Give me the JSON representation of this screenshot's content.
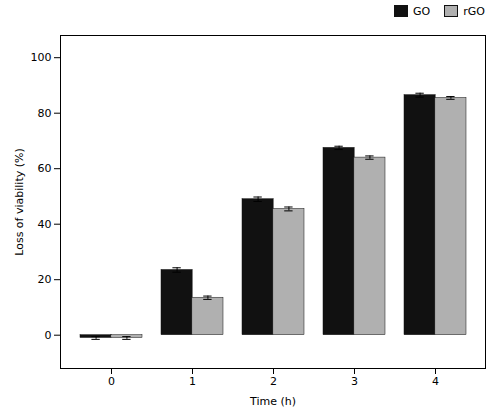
{
  "chart_data": {
    "type": "bar",
    "categories": [
      "0",
      "1",
      "2",
      "3",
      "4"
    ],
    "series": [
      {
        "name": "GO",
        "color": "#111111",
        "values": [
          -1.0,
          23.5,
          49.0,
          67.5,
          86.5
        ],
        "errors": [
          0.5,
          0.8,
          0.8,
          0.6,
          0.7
        ]
      },
      {
        "name": "rGO",
        "color": "#b0b0b0",
        "values": [
          -1.0,
          13.5,
          45.5,
          64.0,
          85.5
        ],
        "errors": [
          0.5,
          0.6,
          0.7,
          0.6,
          0.5
        ]
      }
    ],
    "xlabel": "Time (h)",
    "ylabel": "Loss of viability (%)",
    "ylim": [
      -12,
      108
    ],
    "yticks": [
      0,
      20,
      40,
      60,
      80,
      100
    ],
    "legend": "upper right"
  }
}
